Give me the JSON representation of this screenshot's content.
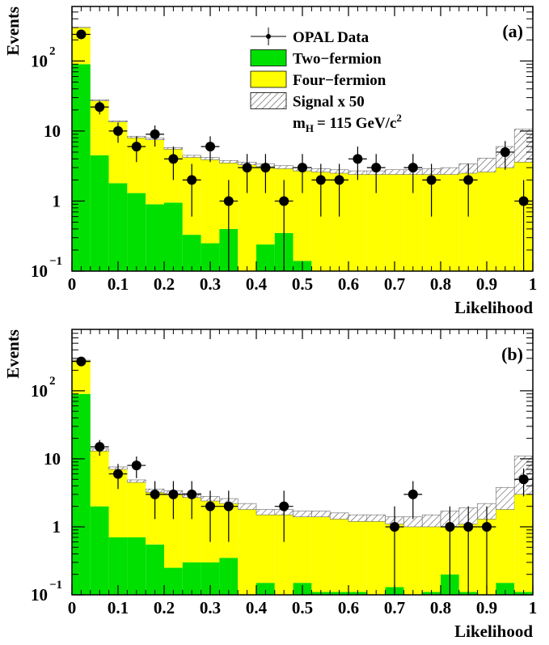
{
  "chart_data": [
    {
      "type": "stacked_histogram",
      "log_y": true,
      "panel_label": "(a)",
      "xlabel": "Likelihood",
      "ylabel": "Events",
      "bins": [
        0,
        0.04,
        0.08,
        0.12,
        0.16,
        0.2,
        0.24,
        0.28,
        0.32,
        0.36,
        0.4,
        0.44,
        0.48,
        0.52,
        0.56,
        0.6,
        0.64,
        0.68,
        0.72,
        0.76,
        0.8,
        0.84,
        0.88,
        0.92,
        0.96,
        1
      ],
      "xlim": [
        0,
        1
      ],
      "xticks": [
        0,
        0.1,
        0.2,
        0.3,
        0.4,
        0.5,
        0.6,
        0.7,
        0.8,
        0.9,
        1
      ],
      "ylim": [
        0.1,
        600
      ],
      "yticks": [
        {
          "value": 0.1,
          "label": "10",
          "exponent": "−1"
        },
        1,
        10,
        {
          "value": 100,
          "label": "10",
          "exponent": "2"
        }
      ],
      "legend": "top-right",
      "annotation": {
        "main": "m",
        "sub": "H",
        "rest": "= 115 GeV/c",
        "sup": "2"
      },
      "data": {
        "name": "OPAL Data",
        "color": "#000000",
        "values": [
          240,
          22,
          10,
          6,
          9,
          4,
          2,
          6,
          1,
          3,
          3,
          1,
          3,
          2,
          2,
          4,
          3,
          null,
          3,
          2,
          null,
          2,
          null,
          5,
          1
        ],
        "errors": [
          15.5,
          4.7,
          3.2,
          2.4,
          3,
          2,
          1.4,
          2.4,
          1,
          1.7,
          1.7,
          1,
          1.7,
          1.4,
          1.4,
          2,
          1.7,
          null,
          1.7,
          1.4,
          null,
          1.4,
          null,
          2.2,
          1
        ]
      },
      "series": [
        {
          "name": "Two−fermion",
          "color": "#00e000",
          "values": [
            90,
            4.5,
            1.8,
            1.3,
            0.9,
            0.95,
            0.33,
            0.25,
            0.4,
            0,
            0.24,
            0.35,
            0.14,
            0,
            0,
            0,
            0,
            0,
            0,
            0,
            0,
            0,
            0,
            0,
            0
          ]
        },
        {
          "name": "Four−fermion",
          "color": "#ffff00",
          "values": [
            210,
            22.5,
            11.7,
            6.7,
            6.6,
            4.55,
            3.87,
            3.65,
            3.1,
            3.3,
            2.86,
            2.55,
            2.56,
            2.6,
            2.5,
            2.4,
            2.4,
            2.4,
            2.4,
            2.4,
            2.4,
            2.5,
            2.6,
            3.0,
            3.6
          ]
        },
        {
          "name": "Signal x 50",
          "color": "hatch",
          "values": [
            2,
            1,
            0.5,
            0.4,
            0.4,
            0.3,
            0.3,
            0.3,
            0.3,
            0.3,
            0.3,
            0.3,
            0.3,
            0.3,
            0.3,
            0.3,
            0.3,
            0.4,
            0.4,
            0.5,
            0.6,
            0.9,
            1.5,
            3,
            7
          ]
        }
      ]
    },
    {
      "type": "stacked_histogram",
      "log_y": true,
      "panel_label": "(b)",
      "xlabel": "Likelihood",
      "ylabel": "Events",
      "bins": [
        0,
        0.04,
        0.08,
        0.12,
        0.16,
        0.2,
        0.24,
        0.28,
        0.32,
        0.36,
        0.4,
        0.44,
        0.48,
        0.52,
        0.56,
        0.6,
        0.64,
        0.68,
        0.72,
        0.76,
        0.8,
        0.84,
        0.88,
        0.92,
        0.96,
        1
      ],
      "xlim": [
        0,
        1
      ],
      "xticks": [
        0,
        0.1,
        0.2,
        0.3,
        0.4,
        0.5,
        0.6,
        0.7,
        0.8,
        0.9,
        1
      ],
      "ylim": [
        0.1,
        800
      ],
      "yticks": [
        {
          "value": 0.1,
          "label": "10",
          "exponent": "−1"
        },
        1,
        10,
        {
          "value": 100,
          "label": "10",
          "exponent": "2"
        }
      ],
      "data": {
        "color": "#000000",
        "values": [
          270,
          15,
          6,
          8,
          3,
          3,
          3,
          2,
          2,
          null,
          null,
          2,
          null,
          null,
          null,
          null,
          null,
          1,
          3,
          null,
          1,
          1,
          1,
          null,
          5
        ],
        "errors": [
          16.4,
          3.9,
          2.4,
          2.8,
          1.7,
          1.7,
          1.7,
          1.4,
          1.4,
          null,
          null,
          1.4,
          null,
          null,
          null,
          null,
          null,
          1,
          1.7,
          null,
          1,
          1,
          1,
          null,
          2.2
        ]
      },
      "series": [
        {
          "color": "#00e000",
          "values": [
            90,
            2.0,
            0.7,
            0.7,
            0.55,
            0.25,
            0.3,
            0.3,
            0.35,
            0,
            0.15,
            0,
            0.15,
            0.11,
            0.11,
            0.11,
            0,
            0.13,
            0,
            0.11,
            0.2,
            0.11,
            0,
            0.15,
            0.11
          ]
        },
        {
          "color": "#ffff00",
          "values": [
            190,
            11,
            6.3,
            3.8,
            2.65,
            2.75,
            2.4,
            2.1,
            1.85,
            1.8,
            1.35,
            1.5,
            1.25,
            1.29,
            1.19,
            1.09,
            1.2,
            0.97,
            1.0,
            0.89,
            0.8,
            0.99,
            1.3,
            1.65,
            2.89
          ]
        },
        {
          "color": "hatch",
          "values": [
            2,
            1,
            0.6,
            0.4,
            0.4,
            0.4,
            0.4,
            0.4,
            0.4,
            0.4,
            0.3,
            0.3,
            0.3,
            0.3,
            0.3,
            0.3,
            0.3,
            0.3,
            0.4,
            0.5,
            0.7,
            0.8,
            0.9,
            2,
            8
          ]
        }
      ]
    }
  ]
}
